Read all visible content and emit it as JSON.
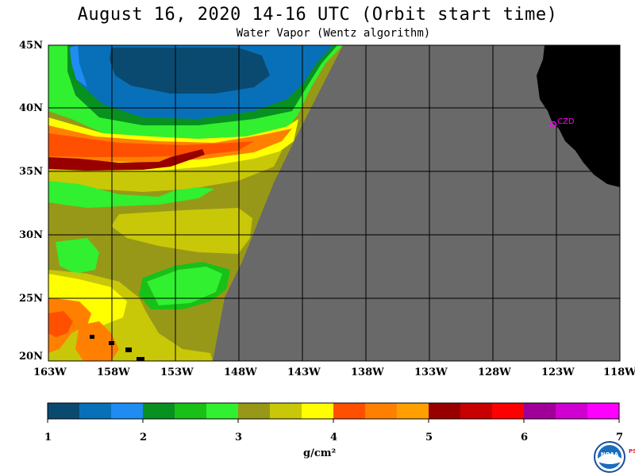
{
  "title": "August 16, 2020  14-16 UTC  (Orbit start time)",
  "subtitle": "Water Vapor (Wentz algorithm)",
  "lat_labels": [
    "45N",
    "40N",
    "35N",
    "30N",
    "25N",
    "20N"
  ],
  "lon_labels": [
    "163W",
    "158W",
    "153W",
    "148W",
    "143W",
    "138W",
    "133W",
    "128W",
    "123W",
    "118W"
  ],
  "station_label": "CZD",
  "colorbar": {
    "ticks": [
      "1",
      "2",
      "3",
      "4",
      "5",
      "6",
      "7"
    ],
    "units": "g/cm²",
    "colors": [
      "#0a4a70",
      "#0870b8",
      "#1e8cf0",
      "#089020",
      "#18c018",
      "#30f030",
      "#989818",
      "#c8c808",
      "#ffff00",
      "#ff5000",
      "#ff8000",
      "#ffa000",
      "#980000",
      "#c80000",
      "#ff0000",
      "#a00098",
      "#d000d0",
      "#ff00ff"
    ]
  },
  "map_colors": {
    "no_data": "#696969",
    "land": "#000000",
    "grid": "#000000",
    "station": "#ff00ff"
  },
  "logo": {
    "text": "NOAA",
    "side_text": "PSL"
  }
}
